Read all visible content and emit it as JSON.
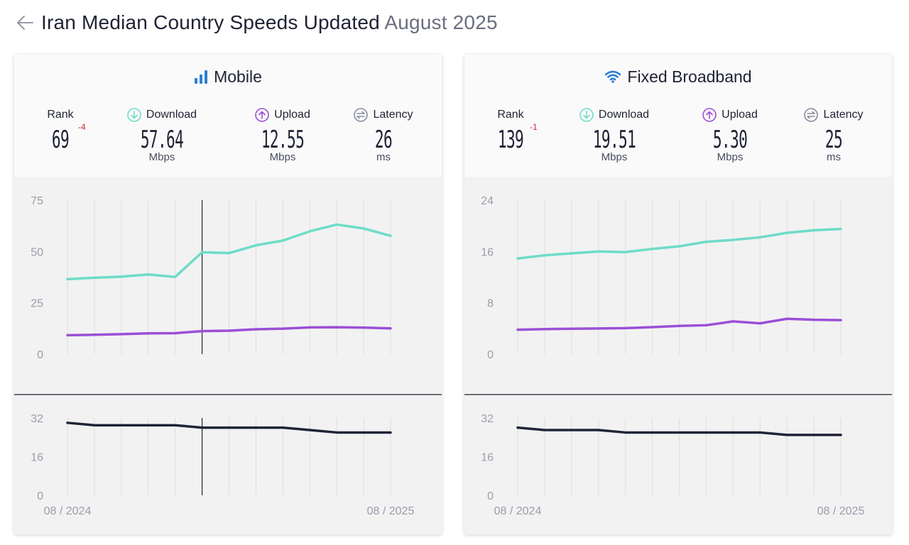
{
  "header": {
    "title_main": "Iran Median Country Speeds Updated",
    "title_date": "August 2025",
    "back_icon": "arrow-left-icon"
  },
  "colors": {
    "download": "#6edcc8",
    "upload": "#9b4fd6",
    "latency": "#1f2436",
    "rank_delta": "#d7263d",
    "title_icon": "#2f7fd1"
  },
  "labels": {
    "rank": "Rank",
    "download": "Download",
    "upload": "Upload",
    "latency": "Latency",
    "speed_unit": "Mbps",
    "latency_unit": "ms"
  },
  "mobile": {
    "title": "Mobile",
    "icon": "signal-bars-icon",
    "rank": "69",
    "rank_change": "-4",
    "download": "57.64",
    "upload": "12.55",
    "latency": "26"
  },
  "fixed": {
    "title": "Fixed Broadband",
    "icon": "wifi-icon",
    "rank": "139",
    "rank_change": "-1",
    "download": "19.51",
    "upload": "5.30",
    "latency": "25"
  },
  "chart_data": [
    {
      "type": "line",
      "panel": "Mobile",
      "x_labels": [
        "08 / 2024",
        "08 / 2025"
      ],
      "speed": {
        "ylim": [
          0,
          75
        ],
        "yticks": [
          "75",
          "50",
          "25",
          "0"
        ],
        "series": [
          {
            "values": [
              36.5,
              37.2,
              37.7,
              38.8,
              37.6,
              49.6,
              49.2,
              53,
              55.3,
              59.8,
              63.1,
              61.2,
              57.6
            ]
          },
          {
            "values": [
              9.2,
              9.4,
              9.7,
              10.1,
              10.2,
              11.2,
              11.4,
              12.1,
              12.4,
              13,
              13.1,
              12.9,
              12.55
            ]
          }
        ],
        "cursor_index": 5
      },
      "latency": {
        "ylim": [
          0,
          32
        ],
        "yticks": [
          "32",
          "16",
          "0"
        ],
        "values": [
          30,
          29,
          29,
          29,
          29,
          28,
          28,
          28,
          28,
          27,
          26,
          26,
          26
        ],
        "cursor_index": 5
      }
    },
    {
      "type": "line",
      "panel": "Fixed Broadband",
      "x_labels": [
        "08 / 2024",
        "08 / 2025"
      ],
      "speed": {
        "ylim": [
          0,
          24
        ],
        "yticks": [
          "24",
          "16",
          "8",
          "0"
        ],
        "series": [
          {
            "values": [
              14.9,
              15.4,
              15.7,
              16,
              15.9,
              16.4,
              16.8,
              17.5,
              17.8,
              18.2,
              18.9,
              19.3,
              19.51
            ]
          },
          {
            "values": [
              3.8,
              3.9,
              3.95,
              4,
              4.05,
              4.2,
              4.4,
              4.5,
              5.1,
              4.8,
              5.5,
              5.35,
              5.3
            ]
          }
        ]
      },
      "latency": {
        "ylim": [
          0,
          32
        ],
        "yticks": [
          "32",
          "16",
          "0"
        ],
        "values": [
          28,
          27,
          27,
          27,
          26,
          26,
          26,
          26,
          26,
          26,
          25,
          25,
          25
        ]
      }
    }
  ]
}
